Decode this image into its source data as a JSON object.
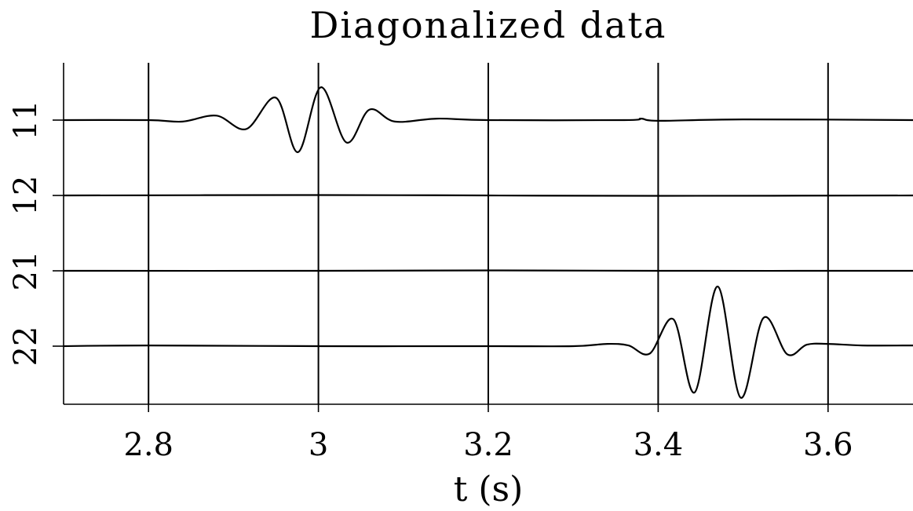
{
  "chart_data": {
    "type": "line",
    "title": "Diagonalized data",
    "xlabel": "t (s)",
    "ylabel": "",
    "xlim": [
      2.7,
      3.7
    ],
    "xticks": [
      2.8,
      3.0,
      3.2,
      3.4,
      3.6
    ],
    "xtick_labels": [
      "2.8",
      "3",
      "3.2",
      "3.4",
      "3.6"
    ],
    "grid": true,
    "traces": [
      {
        "label": "11",
        "points": [
          [
            2.7,
            0
          ],
          [
            2.8,
            0
          ],
          [
            2.84,
            -0.02
          ],
          [
            2.88,
            0.06
          ],
          [
            2.915,
            -0.12
          ],
          [
            2.95,
            0.3
          ],
          [
            2.976,
            -0.43
          ],
          [
            3.003,
            0.44
          ],
          [
            3.033,
            -0.3
          ],
          [
            3.06,
            0.14
          ],
          [
            3.09,
            -0.02
          ],
          [
            3.14,
            0.02
          ],
          [
            3.2,
            0
          ],
          [
            3.36,
            0
          ],
          [
            3.38,
            0.02
          ],
          [
            3.4,
            -0.01
          ],
          [
            3.5,
            0.01
          ],
          [
            3.7,
            0
          ]
        ]
      },
      {
        "label": "12",
        "points": [
          [
            2.7,
            0
          ],
          [
            3.0,
            0.005
          ],
          [
            3.2,
            0
          ],
          [
            3.4,
            -0.005
          ],
          [
            3.7,
            0
          ]
        ]
      },
      {
        "label": "21",
        "points": [
          [
            2.7,
            0
          ],
          [
            3.0,
            0
          ],
          [
            3.2,
            0.005
          ],
          [
            3.4,
            0
          ],
          [
            3.7,
            0
          ]
        ]
      },
      {
        "label": "22",
        "points": [
          [
            2.7,
            0
          ],
          [
            2.8,
            0.01
          ],
          [
            3.0,
            0
          ],
          [
            3.2,
            0
          ],
          [
            3.3,
            0
          ],
          [
            3.34,
            0.03
          ],
          [
            3.365,
            0.01
          ],
          [
            3.39,
            -0.1
          ],
          [
            3.418,
            0.36
          ],
          [
            3.443,
            -0.62
          ],
          [
            3.47,
            0.8
          ],
          [
            3.497,
            -0.69
          ],
          [
            3.524,
            0.38
          ],
          [
            3.552,
            -0.11
          ],
          [
            3.575,
            0.02
          ],
          [
            3.6,
            0.03
          ],
          [
            3.64,
            0.01
          ],
          [
            3.7,
            0.01
          ]
        ]
      }
    ]
  }
}
